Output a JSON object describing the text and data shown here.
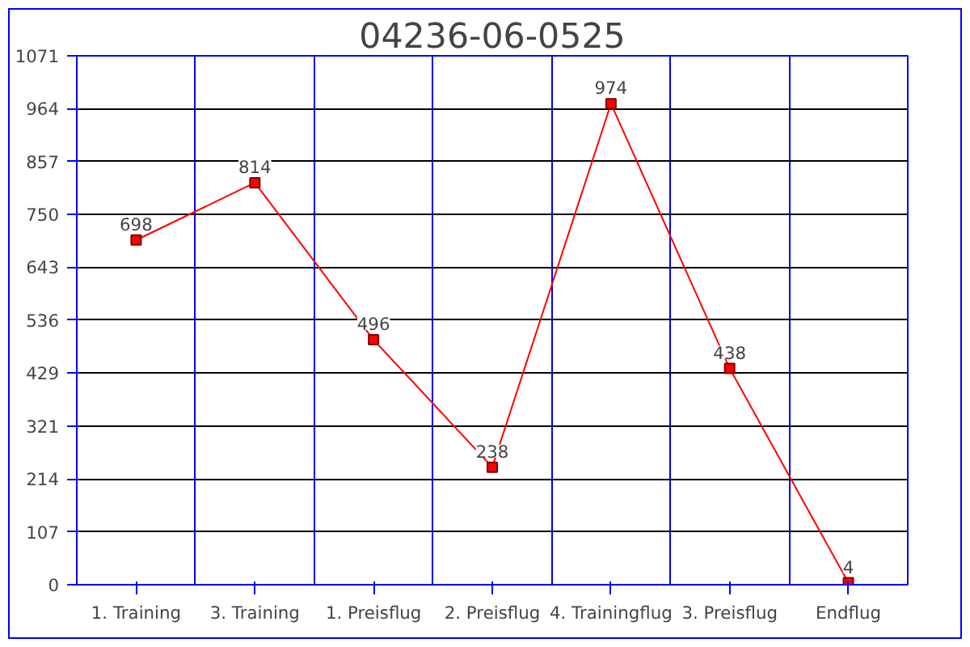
{
  "chart_data": {
    "type": "line",
    "title": "04236-06-0525",
    "categories": [
      "1. Training",
      "3. Training",
      "1. Preisflug",
      "2. Preisflug",
      "4. Trainingflug",
      "3. Preisflug",
      "Endflug"
    ],
    "series": [
      {
        "color": "#ff0000",
        "values": [
          698,
          814,
          496,
          238,
          974,
          438,
          4
        ]
      }
    ],
    "ylim": [
      0,
      1071
    ],
    "yticks": [
      0,
      107,
      214,
      321,
      429,
      536,
      643,
      750,
      857,
      964,
      1071
    ],
    "grid": true,
    "marker": "square",
    "line_style": "solid",
    "data_labels": true
  }
}
